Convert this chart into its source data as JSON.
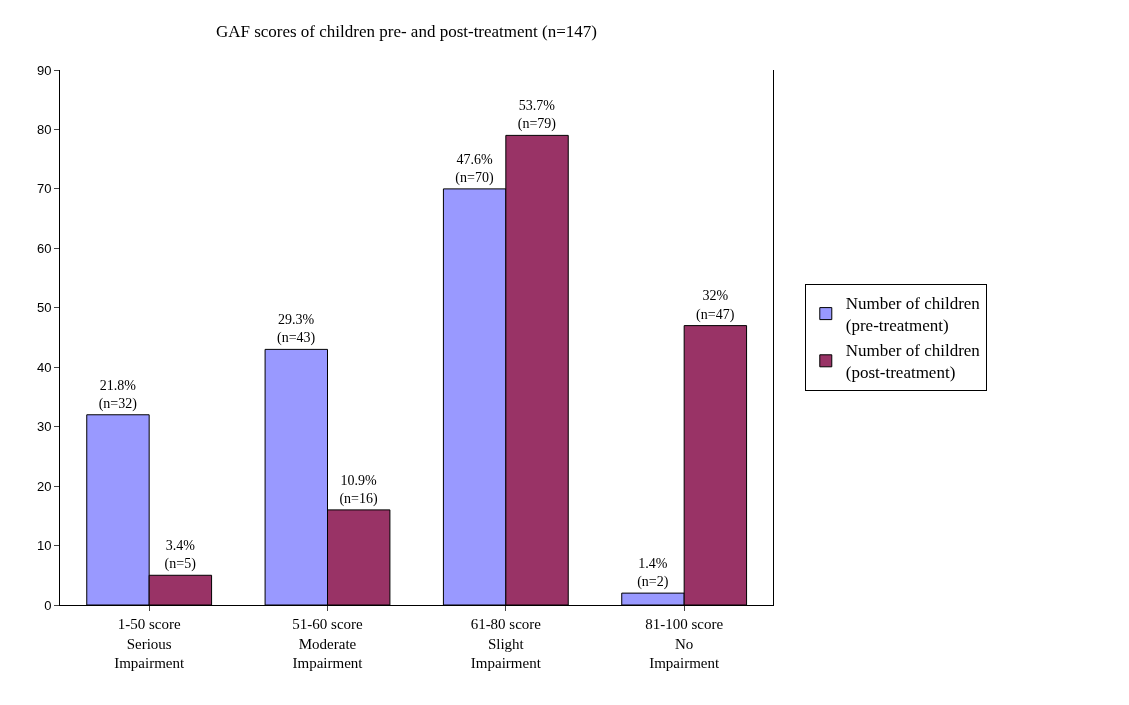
{
  "chart_data": {
    "type": "bar",
    "title": "GAF scores of children pre- and post-treatment (n=147)",
    "categories": [
      "1-50 score\nSerious\nImpairment",
      "51-60 score\nModerate\nImpairment",
      "61-80 score\nSlight\nImpairment",
      "81-100 score\nNo\nImpairment"
    ],
    "series": [
      {
        "name": "Number of children\n(pre-treatment)",
        "color": "#9999ff",
        "values": [
          32,
          43,
          70,
          2
        ],
        "value_labels": [
          "21.8%\n(n=32)",
          "29.3%\n(n=43)",
          "47.6%\n(n=70)",
          "1.4%\n(n=2)"
        ]
      },
      {
        "name": "Number of children\n(post-treatment)",
        "color": "#993366",
        "values": [
          5,
          16,
          79,
          47
        ],
        "value_labels": [
          "3.4%\n(n=5)",
          "10.9%\n(n=16)",
          "53.7%\n(n=79)",
          "32%\n(n=47)"
        ]
      }
    ],
    "ylim": [
      0,
      90
    ],
    "yticks": [
      0,
      10,
      20,
      30,
      40,
      50,
      60,
      70,
      80,
      90
    ],
    "grid": false,
    "legend": "right"
  }
}
